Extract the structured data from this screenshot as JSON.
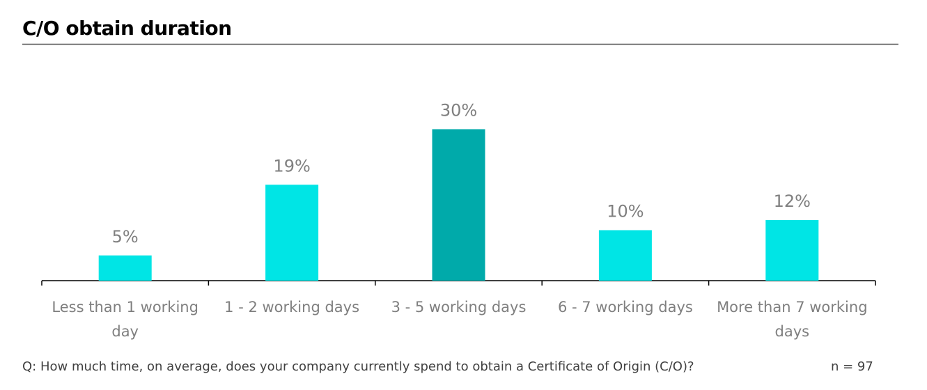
{
  "chart_data": {
    "type": "bar",
    "title": "C/O obtain duration",
    "categories": [
      "Less than 1 working day",
      "1 - 2 working days",
      "3 - 5 working days",
      "6 - 7 working days",
      "More than 7 working days"
    ],
    "values": [
      5,
      19,
      30,
      10,
      12
    ],
    "value_labels": [
      "5%",
      "19%",
      "30%",
      "10%",
      "12%"
    ],
    "colors": [
      "#00e5e5",
      "#00e5e5",
      "#00aaaa",
      "#00e5e5",
      "#00e5e5"
    ],
    "note": "Q: How much time, on average, does your company currently spend to obtain a Certificate of Origin (C/O)?",
    "sample_size": "n = 97"
  }
}
